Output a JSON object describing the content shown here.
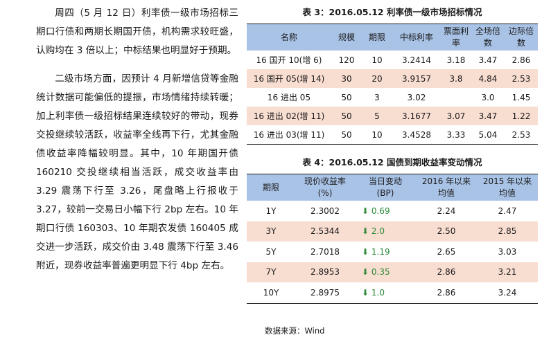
{
  "left": {
    "paragraphs": [
      "周四（5 月 12 日）利率债一级市场招标三期口行债和两期长期国开债，机构需求较旺盛，认购均在 3 倍以上；中标结果也明显好于预期。",
      "二级市场方面，因预计 4 月新增信贷等金融统计数据可能偏低的提振，市场情绪持续转暖；加上利率债一级招标结果连续较好的带动，现券交投继续较活跃，收益率全线再下行，尤其金融债收益率降幅较明显。其中，10 年期国开债 160210 交投继续相当活跃，成交收益率由 3.29 震荡下行至 3.26，尾盘略上行报收于 3.27，较前一交易日小幅下行 2bp 左右。10 年期口行债 160303、10 年期农发债 160405 成交进一步活跃，成交价由 3.48 震荡下行至 3.46 附近，现券收益率普遍更明显下行 4bp 左右。"
    ]
  },
  "table3": {
    "title": "表 3：2016.05.12 利率债一级市场招标情况",
    "headers": [
      "名称",
      "规模",
      "期限",
      "中标利率",
      "票面利率",
      "全场倍数",
      "边际倍数"
    ],
    "rows": [
      {
        "name": "16 国开 10(增 6)",
        "size": "120",
        "term": "10",
        "rate": "3.2414",
        "coupon": "3.18",
        "total_mult": "3.47",
        "marg_mult": "2.86",
        "pink": false
      },
      {
        "name": "16 国开 05(增 14)",
        "size": "30",
        "term": "20",
        "rate": "3.9157",
        "coupon": "3.8",
        "total_mult": "4.84",
        "marg_mult": "2.53",
        "pink": true
      },
      {
        "name": "16 进出 05",
        "size": "50",
        "term": "3",
        "rate": "3.02",
        "coupon": "",
        "total_mult": "3.0",
        "marg_mult": "1.45",
        "pink": false
      },
      {
        "name": "16 进出 02(增 11)",
        "size": "50",
        "term": "5",
        "rate": "3.1677",
        "coupon": "3.07",
        "total_mult": "3.47",
        "marg_mult": "1.22",
        "pink": true
      },
      {
        "name": "16 进出 03(增 11)",
        "size": "50",
        "term": "10",
        "rate": "3.4528",
        "coupon": "3.33",
        "total_mult": "5.04",
        "marg_mult": "2.53",
        "pink": false
      }
    ]
  },
  "table4": {
    "title": "表 4：2016.05.12 国债到期收益率变动情况",
    "headers": {
      "term": "期限",
      "yield_l1": "现价收益率",
      "yield_l2": "(%)",
      "change_l1": "当日变动",
      "change_l2": "(BP)",
      "avg2016_l1": "2016 年以来",
      "avg2016_l2": "均值",
      "avg2015_l1": "2015 年以来",
      "avg2015_l2": "均值"
    },
    "rows": [
      {
        "term": "1Y",
        "yield": "2.3002",
        "arrow": "⬇",
        "change": "0.69",
        "avg2016": "2.24",
        "avg2015": "2.47",
        "pink": false
      },
      {
        "term": "3Y",
        "yield": "2.5344",
        "arrow": "⬇",
        "change": "2.0",
        "avg2016": "2.50",
        "avg2015": "2.85",
        "pink": true
      },
      {
        "term": "5Y",
        "yield": "2.7018",
        "arrow": "⬇",
        "change": "1.19",
        "avg2016": "2.65",
        "avg2015": "3.03",
        "pink": false
      },
      {
        "term": "7Y",
        "yield": "2.8953",
        "arrow": "⬇",
        "change": "0.35",
        "avg2016": "2.86",
        "avg2015": "3.21",
        "pink": true
      },
      {
        "term": "10Y",
        "yield": "2.8975",
        "arrow": "⬇",
        "change": "1.0",
        "avg2016": "2.86",
        "avg2015": "3.24",
        "pink": false
      }
    ]
  },
  "source": "数据来源：Wind",
  "colors": {
    "header_bg": "#a9c3e6",
    "row_highlight": "#f8ddd1",
    "arrow_green": "#2e8b3a"
  }
}
